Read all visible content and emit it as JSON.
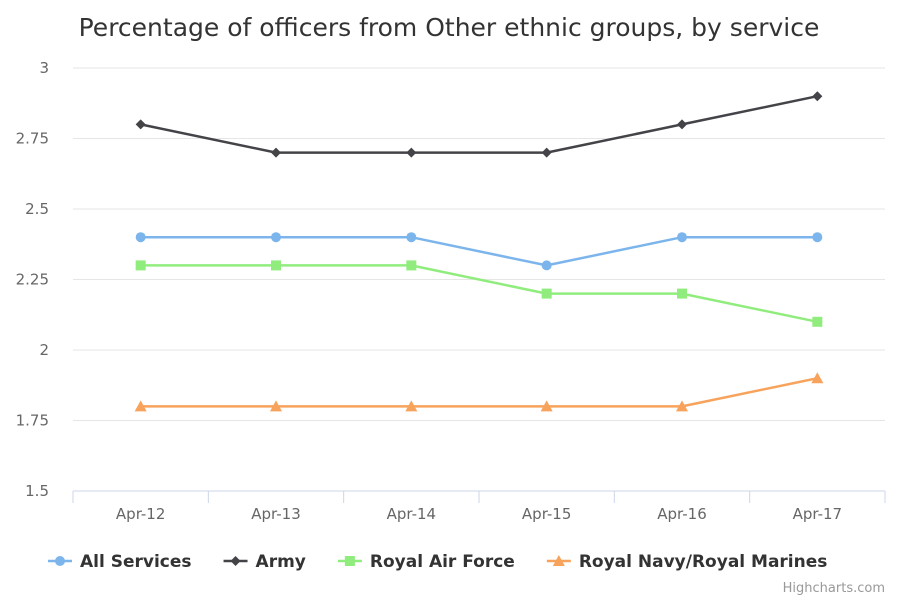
{
  "chart_data": {
    "type": "line",
    "title": "Percentage of officers from Other ethnic groups, by service",
    "categories": [
      "Apr-12",
      "Apr-13",
      "Apr-14",
      "Apr-15",
      "Apr-16",
      "Apr-17"
    ],
    "ylim": [
      1.5,
      3
    ],
    "yticks": [
      1.5,
      1.75,
      2,
      2.25,
      2.5,
      2.75,
      3
    ],
    "ytick_labels": [
      "1.5",
      "1.75",
      "2",
      "2.25",
      "2.5",
      "2.75",
      "3"
    ],
    "grid": true,
    "legend_position": "bottom",
    "series": [
      {
        "name": "All Services",
        "values": [
          2.4,
          2.4,
          2.4,
          2.3,
          2.4,
          2.4
        ],
        "color": "#7cb5ec",
        "marker": "circle"
      },
      {
        "name": "Army",
        "values": [
          2.8,
          2.7,
          2.7,
          2.7,
          2.8,
          2.9
        ],
        "color": "#434348",
        "marker": "diamond"
      },
      {
        "name": "Royal Air Force",
        "values": [
          2.3,
          2.3,
          2.3,
          2.2,
          2.2,
          2.1
        ],
        "color": "#90ed7d",
        "marker": "square"
      },
      {
        "name": "Royal Navy/Royal Marines",
        "values": [
          1.8,
          1.8,
          1.8,
          1.8,
          1.8,
          1.9
        ],
        "color": "#f7a35c",
        "marker": "triangle"
      }
    ]
  },
  "credits": "Highcharts.com"
}
